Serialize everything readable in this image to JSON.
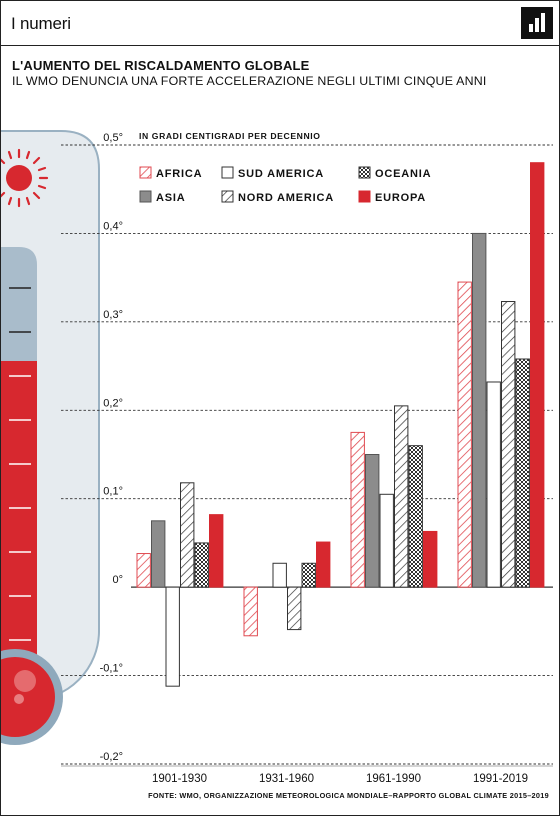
{
  "header": {
    "section_label": "I numeri",
    "logo_icon": "bar-chart-logo-icon"
  },
  "chart_data": {
    "type": "bar",
    "title": "L'AUMENTO DEL RISCALDAMENTO GLOBALE",
    "subtitle": "IL WMO DENUNCIA UNA FORTE ACCELERAZIONE NEGLI ULTIMI CINQUE ANNI",
    "unit_note": "IN GRADI CENTIGRADI PER DECENNIO",
    "categories": [
      "1901-1930",
      "1931-1960",
      "1961-1990",
      "1991-2019"
    ],
    "ylim": [
      -0.2,
      0.5
    ],
    "yticks": [
      {
        "value": 0.5,
        "label": "0,5°"
      },
      {
        "value": 0.4,
        "label": "0,4°"
      },
      {
        "value": 0.3,
        "label": "0,3°"
      },
      {
        "value": 0.2,
        "label": "0,2°"
      },
      {
        "value": 0.1,
        "label": "0,1°"
      },
      {
        "value": 0.0,
        "label": "0°"
      },
      {
        "value": -0.1,
        "label": "-0,1°"
      },
      {
        "value": -0.2,
        "label": "-0,2°"
      }
    ],
    "grid": true,
    "legend_position": "top-left",
    "series": [
      {
        "name": "AFRICA",
        "pattern": "hatch-red",
        "values": [
          0.038,
          -0.055,
          0.175,
          0.345
        ]
      },
      {
        "name": "ASIA",
        "pattern": "solid-gray",
        "values": [
          0.075,
          0.0,
          0.15,
          0.4
        ]
      },
      {
        "name": "SUD AMERICA",
        "pattern": "outline",
        "values": [
          -0.112,
          0.027,
          0.105,
          0.232
        ]
      },
      {
        "name": "NORD AMERICA",
        "pattern": "hatch-black",
        "values": [
          0.118,
          -0.048,
          0.205,
          0.323
        ]
      },
      {
        "name": "OCEANIA",
        "pattern": "dots",
        "values": [
          0.05,
          0.027,
          0.16,
          0.258
        ]
      },
      {
        "name": "EUROPA",
        "pattern": "solid-red",
        "values": [
          0.082,
          0.051,
          0.063,
          0.48
        ]
      }
    ],
    "legend": [
      {
        "name": "AFRICA",
        "pattern": "hatch-red"
      },
      {
        "name": "SUD AMERICA",
        "pattern": "outline"
      },
      {
        "name": "OCEANIA",
        "pattern": "dots"
      },
      {
        "name": "ASIA",
        "pattern": "solid-gray"
      },
      {
        "name": "NORD AMERICA",
        "pattern": "hatch-black"
      },
      {
        "name": "EUROPA",
        "pattern": "solid-red"
      }
    ],
    "source": "FONTE: WMO, ORGANIZZAZIONE METEOROLOGICA MONDIALE–RAPPORTO GLOBAL CLIMATE 2015–2019"
  },
  "colors": {
    "red": "#d7282f",
    "gray": "#8c8c8c",
    "hatch_red": "#e04a50",
    "thermometer_outline": "#9ab1c2",
    "thermometer_glass": "#e6ebef",
    "thermometer_glass_dark": "#a9bccb"
  },
  "decorations": {
    "thermometer": "thermometer-icon",
    "sun": "sun-icon"
  }
}
